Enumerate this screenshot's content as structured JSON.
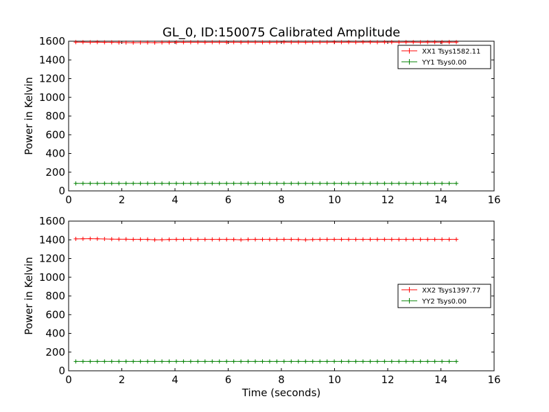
{
  "figure": {
    "title": "GL_0, ID:150075 Calibrated Amplitude"
  },
  "colors": {
    "xx": "#ff0000",
    "yy": "#008000",
    "axis": "#000000"
  },
  "chart_data": [
    {
      "type": "line",
      "title": "GL_0, ID:150075 Calibrated Amplitude",
      "xlabel": "",
      "ylabel": "Power in Kelvin",
      "xlim": [
        0,
        16
      ],
      "ylim": [
        0,
        1600
      ],
      "xticks": [
        "0",
        "2",
        "4",
        "6",
        "8",
        "10",
        "12",
        "14",
        "16"
      ],
      "yticks": [
        "0",
        "200",
        "400",
        "600",
        "800",
        "1000",
        "1200",
        "1400",
        "1600"
      ],
      "legend_position": "top-right",
      "series": [
        {
          "name": "XX1 Tsys1582.11",
          "color": "#ff0000",
          "x": [
            0.27,
            0.54,
            0.81,
            1.08,
            1.35,
            1.62,
            1.89,
            2.16,
            2.43,
            2.7,
            2.97,
            3.24,
            3.51,
            3.78,
            4.05,
            4.32,
            4.59,
            4.86,
            5.13,
            5.4,
            5.67,
            5.94,
            6.21,
            6.48,
            6.75,
            7.02,
            7.29,
            7.56,
            7.83,
            8.1,
            8.37,
            8.64,
            8.91,
            9.18,
            9.45,
            9.72,
            9.99,
            10.26,
            10.53,
            10.8,
            11.07,
            11.34,
            11.61,
            11.88,
            12.15,
            12.42,
            12.69,
            12.96,
            13.23,
            13.5,
            13.77,
            14.04,
            14.31,
            14.58
          ],
          "values": [
            1590,
            1590,
            1589,
            1590,
            1588,
            1588,
            1586,
            1585,
            1584,
            1585,
            1586,
            1584,
            1586,
            1587,
            1588,
            1588,
            1589,
            1589,
            1588,
            1589,
            1589,
            1588,
            1589,
            1588,
            1589,
            1589,
            1588,
            1588,
            1589,
            1590,
            1589,
            1589,
            1588,
            1589,
            1589,
            1589,
            1590,
            1589,
            1590,
            1589,
            1590,
            1590,
            1589,
            1590,
            1590,
            1589,
            1590,
            1590,
            1589,
            1590,
            1590,
            1590,
            1590,
            1590
          ]
        },
        {
          "name": "YY1 Tsys0.00",
          "color": "#008000",
          "x": [
            0.27,
            0.54,
            0.81,
            1.08,
            1.35,
            1.62,
            1.89,
            2.16,
            2.43,
            2.7,
            2.97,
            3.24,
            3.51,
            3.78,
            4.05,
            4.32,
            4.59,
            4.86,
            5.13,
            5.4,
            5.67,
            5.94,
            6.21,
            6.48,
            6.75,
            7.02,
            7.29,
            7.56,
            7.83,
            8.1,
            8.37,
            8.64,
            8.91,
            9.18,
            9.45,
            9.72,
            9.99,
            10.26,
            10.53,
            10.8,
            11.07,
            11.34,
            11.61,
            11.88,
            12.15,
            12.42,
            12.69,
            12.96,
            13.23,
            13.5,
            13.77,
            14.04,
            14.31,
            14.58
          ],
          "values": [
            80,
            80,
            80,
            80,
            80,
            80,
            80,
            80,
            80,
            80,
            80,
            80,
            80,
            80,
            80,
            80,
            80,
            80,
            80,
            80,
            80,
            80,
            80,
            80,
            80,
            80,
            80,
            80,
            80,
            80,
            80,
            80,
            80,
            80,
            80,
            80,
            80,
            80,
            80,
            80,
            80,
            80,
            80,
            80,
            80,
            80,
            80,
            80,
            80,
            80,
            80,
            80,
            80,
            80
          ]
        }
      ]
    },
    {
      "type": "line",
      "title": "",
      "xlabel": "Time (seconds)",
      "ylabel": "Power in Kelvin",
      "xlim": [
        0,
        16
      ],
      "ylim": [
        0,
        1600
      ],
      "xticks": [
        "0",
        "2",
        "4",
        "6",
        "8",
        "10",
        "12",
        "14",
        "16"
      ],
      "yticks": [
        "0",
        "200",
        "400",
        "600",
        "800",
        "1000",
        "1200",
        "1400",
        "1600"
      ],
      "legend_position": "center-right",
      "series": [
        {
          "name": "XX2 Tsys1397.77",
          "color": "#ff0000",
          "x": [
            0.27,
            0.54,
            0.81,
            1.08,
            1.35,
            1.62,
            1.89,
            2.16,
            2.43,
            2.7,
            2.97,
            3.24,
            3.51,
            3.78,
            4.05,
            4.32,
            4.59,
            4.86,
            5.13,
            5.4,
            5.67,
            5.94,
            6.21,
            6.48,
            6.75,
            7.02,
            7.29,
            7.56,
            7.83,
            8.1,
            8.37,
            8.64,
            8.91,
            9.18,
            9.45,
            9.72,
            9.99,
            10.26,
            10.53,
            10.8,
            11.07,
            11.34,
            11.61,
            11.88,
            12.15,
            12.42,
            12.69,
            12.96,
            13.23,
            13.5,
            13.77,
            14.04,
            14.31,
            14.58
          ],
          "values": [
            1410,
            1411,
            1412,
            1411,
            1409,
            1407,
            1406,
            1406,
            1405,
            1405,
            1405,
            1400,
            1401,
            1404,
            1405,
            1405,
            1405,
            1405,
            1405,
            1405,
            1405,
            1405,
            1404,
            1400,
            1404,
            1405,
            1405,
            1405,
            1405,
            1405,
            1405,
            1404,
            1400,
            1403,
            1405,
            1405,
            1405,
            1405,
            1405,
            1405,
            1405,
            1405,
            1405,
            1405,
            1405,
            1405,
            1405,
            1405,
            1405,
            1405,
            1405,
            1405,
            1405,
            1405
          ]
        },
        {
          "name": "YY2 Tsys0.00",
          "color": "#008000",
          "x": [
            0.27,
            0.54,
            0.81,
            1.08,
            1.35,
            1.62,
            1.89,
            2.16,
            2.43,
            2.7,
            2.97,
            3.24,
            3.51,
            3.78,
            4.05,
            4.32,
            4.59,
            4.86,
            5.13,
            5.4,
            5.67,
            5.94,
            6.21,
            6.48,
            6.75,
            7.02,
            7.29,
            7.56,
            7.83,
            8.1,
            8.37,
            8.64,
            8.91,
            9.18,
            9.45,
            9.72,
            9.99,
            10.26,
            10.53,
            10.8,
            11.07,
            11.34,
            11.61,
            11.88,
            12.15,
            12.42,
            12.69,
            12.96,
            13.23,
            13.5,
            13.77,
            14.04,
            14.31,
            14.58
          ],
          "values": [
            100,
            100,
            100,
            100,
            100,
            100,
            100,
            100,
            100,
            100,
            100,
            100,
            100,
            100,
            100,
            100,
            100,
            100,
            100,
            100,
            100,
            100,
            100,
            100,
            100,
            100,
            100,
            100,
            100,
            100,
            100,
            100,
            100,
            100,
            100,
            100,
            100,
            100,
            100,
            100,
            100,
            100,
            100,
            100,
            100,
            100,
            100,
            100,
            100,
            100,
            100,
            100,
            100,
            100
          ]
        }
      ]
    }
  ]
}
